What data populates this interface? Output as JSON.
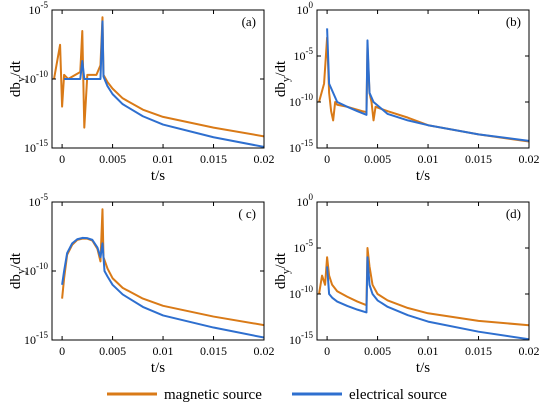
{
  "colors": {
    "magnetic": "#D97A17",
    "electrical": "#2E6FCF",
    "axis": "#000000"
  },
  "legend": {
    "magnetic_label": "magnetic source",
    "electrical_label": "electrical source"
  },
  "chart_data": [
    {
      "type": "line",
      "panel_label": "(a)",
      "xlabel": "t/s",
      "ylabel": "db_y/dt",
      "yscale": "log",
      "xlim": [
        -0.001,
        0.02
      ],
      "ylim": [
        1e-15,
        1e-05
      ],
      "xticks": [
        0,
        0.005,
        0.01,
        0.015,
        0.02
      ],
      "xtick_labels": [
        "0",
        "0.005",
        "0.01",
        "0.015",
        "0.02"
      ],
      "yticks": [
        1e-15,
        1e-10,
        1e-05
      ],
      "ytick_labels": [
        {
          "base": "10",
          "exp": "-15"
        },
        {
          "base": "10",
          "exp": "-10"
        },
        {
          "base": "10",
          "exp": "-5"
        }
      ],
      "series": [
        {
          "name": "magnetic source",
          "points": [
            [
              -0.0008,
              1e-10
            ],
            [
              -0.0002,
              3e-08
            ],
            [
              0,
              1e-12
            ],
            [
              0.0002,
              2e-10
            ],
            [
              0.0006,
              1e-10
            ],
            [
              0.0018,
              3.2e-10
            ],
            [
              0.002,
              3e-07
            ],
            [
              0.0022,
              3e-14
            ],
            [
              0.0025,
              2e-10
            ],
            [
              0.0034,
              2e-10
            ],
            [
              0.0038,
              1e-09
            ],
            [
              0.004,
              3e-06
            ],
            [
              0.0041,
              2e-10
            ],
            [
              0.0045,
              6e-11
            ],
            [
              0.005,
              2e-11
            ],
            [
              0.006,
              4e-12
            ],
            [
              0.008,
              6e-13
            ],
            [
              0.01,
              1.8e-13
            ],
            [
              0.015,
              3e-14
            ],
            [
              0.02,
              7e-15
            ]
          ]
        },
        {
          "name": "electrical source",
          "points": [
            [
              0.0002,
              1e-10
            ],
            [
              0.0018,
              1e-10
            ],
            [
              0.002,
              2e-09
            ],
            [
              0.0022,
              1e-10
            ],
            [
              0.0038,
              1e-10
            ],
            [
              0.004,
              1.5e-06
            ],
            [
              0.0041,
              1.5e-10
            ],
            [
              0.0045,
              3e-11
            ],
            [
              0.005,
              8e-12
            ],
            [
              0.006,
              1.5e-12
            ],
            [
              0.008,
              2e-13
            ],
            [
              0.01,
              5e-14
            ],
            [
              0.015,
              6e-15
            ],
            [
              0.02,
              1.2e-15
            ]
          ]
        }
      ]
    },
    {
      "type": "line",
      "panel_label": "(b)",
      "xlabel": "t/s",
      "ylabel": "db_y/dt",
      "yscale": "log",
      "xlim": [
        -0.001,
        0.02
      ],
      "ylim": [
        1e-15,
        1
      ],
      "xticks": [
        0,
        0.005,
        0.01,
        0.015,
        0.02
      ],
      "xtick_labels": [
        "0",
        "0.005",
        "0.01",
        "0.015",
        "0.02"
      ],
      "yticks": [
        1e-15,
        1e-10,
        1e-05,
        1
      ],
      "ytick_labels": [
        {
          "base": "10",
          "exp": "-15"
        },
        {
          "base": "10",
          "exp": "-10"
        },
        {
          "base": "10",
          "exp": "-5"
        },
        {
          "base": "10",
          "exp": "0"
        }
      ],
      "series": [
        {
          "name": "magnetic source",
          "points": [
            [
              -0.0008,
              1e-10
            ],
            [
              -0.0003,
              1e-08
            ],
            [
              0,
              0.001
            ],
            [
              0.0002,
              1e-09
            ],
            [
              0.0004,
              1e-11
            ],
            [
              0.0006,
              1e-12
            ],
            [
              0.0008,
              1e-10
            ],
            [
              0.001,
              5e-11
            ],
            [
              0.002,
              3e-11
            ],
            [
              0.0035,
              1e-11
            ],
            [
              0.0039,
              8e-12
            ],
            [
              0.004,
              0.0001
            ],
            [
              0.0042,
              1e-09
            ],
            [
              0.0044,
              1e-10
            ],
            [
              0.0046,
              1e-12
            ],
            [
              0.0048,
              3e-11
            ],
            [
              0.006,
              1e-11
            ],
            [
              0.008,
              2e-12
            ],
            [
              0.01,
              3e-13
            ],
            [
              0.015,
              3e-14
            ],
            [
              0.02,
              5e-15
            ]
          ]
        },
        {
          "name": "electrical source",
          "points": [
            [
              0,
              0.01
            ],
            [
              0.0002,
              1e-08
            ],
            [
              0.001,
              1e-10
            ],
            [
              0.002,
              3e-11
            ],
            [
              0.003,
              1e-11
            ],
            [
              0.0039,
              4e-12
            ],
            [
              0.004,
              0.0005
            ],
            [
              0.0042,
              1e-09
            ],
            [
              0.0046,
              1e-10
            ],
            [
              0.006,
              5e-12
            ],
            [
              0.008,
              1e-12
            ],
            [
              0.01,
              3e-13
            ],
            [
              0.015,
              3e-14
            ],
            [
              0.02,
              6e-15
            ]
          ]
        }
      ]
    },
    {
      "type": "line",
      "panel_label": "( c)",
      "xlabel": "t/s",
      "ylabel": "db_y/dt",
      "yscale": "log",
      "xlim": [
        -0.001,
        0.02
      ],
      "ylim": [
        1e-15,
        1e-05
      ],
      "xticks": [
        0,
        0.005,
        0.01,
        0.015,
        0.02
      ],
      "xtick_labels": [
        "0",
        "0.005",
        "0.01",
        "0.015",
        "0.02"
      ],
      "yticks": [
        1e-15,
        1e-10,
        1e-05
      ],
      "ytick_labels": [
        {
          "base": "10",
          "exp": "-15"
        },
        {
          "base": "10",
          "exp": "-10"
        },
        {
          "base": "10",
          "exp": "-5"
        }
      ],
      "series": [
        {
          "name": "magnetic source",
          "points": [
            [
              0,
              1e-12
            ],
            [
              0.0002,
              3e-11
            ],
            [
              0.0005,
              1.5e-09
            ],
            [
              0.001,
              8e-09
            ],
            [
              0.0015,
              1.8e-08
            ],
            [
              0.002,
              2.2e-08
            ],
            [
              0.0025,
              2.2e-08
            ],
            [
              0.003,
              1.6e-08
            ],
            [
              0.0035,
              4e-09
            ],
            [
              0.0038,
              5e-10
            ],
            [
              0.004,
              3e-06
            ],
            [
              0.0041,
              1e-09
            ],
            [
              0.0045,
              1.5e-10
            ],
            [
              0.005,
              3e-11
            ],
            [
              0.006,
              6e-12
            ],
            [
              0.008,
              1e-12
            ],
            [
              0.01,
              3e-13
            ],
            [
              0.015,
              5e-14
            ],
            [
              0.02,
              1.2e-14
            ]
          ]
        },
        {
          "name": "electrical source",
          "points": [
            [
              0,
              1e-11
            ],
            [
              0.0002,
              1e-10
            ],
            [
              0.0005,
              2e-09
            ],
            [
              0.001,
              1e-08
            ],
            [
              0.0015,
              2e-08
            ],
            [
              0.002,
              2.5e-08
            ],
            [
              0.0025,
              2.4e-08
            ],
            [
              0.003,
              1.8e-08
            ],
            [
              0.0035,
              5e-09
            ],
            [
              0.0038,
              1e-09
            ],
            [
              0.004,
              1e-08
            ],
            [
              0.0042,
              1e-10
            ],
            [
              0.0045,
              4e-11
            ],
            [
              0.005,
              1e-11
            ],
            [
              0.006,
              2e-12
            ],
            [
              0.008,
              2.5e-13
            ],
            [
              0.01,
              6e-14
            ],
            [
              0.015,
              8e-15
            ],
            [
              0.02,
              1.5e-15
            ]
          ]
        }
      ]
    },
    {
      "type": "line",
      "panel_label": "(d)",
      "xlabel": "t/s",
      "ylabel": "db_y/dt",
      "yscale": "log",
      "xlim": [
        -0.001,
        0.02
      ],
      "ylim": [
        1e-15,
        1
      ],
      "xticks": [
        0,
        0.005,
        0.01,
        0.015,
        0.02
      ],
      "xtick_labels": [
        "0",
        "0.005",
        "0.01",
        "0.015",
        "0.02"
      ],
      "yticks": [
        1e-15,
        1e-10,
        1e-05,
        1
      ],
      "ytick_labels": [
        {
          "base": "10",
          "exp": "-15"
        },
        {
          "base": "10",
          "exp": "-10"
        },
        {
          "base": "10",
          "exp": "-5"
        },
        {
          "base": "10",
          "exp": "0"
        }
      ],
      "series": [
        {
          "name": "magnetic source",
          "points": [
            [
              -0.0008,
              1e-10
            ],
            [
              -0.0005,
              1e-08
            ],
            [
              -0.0002,
              1e-09
            ],
            [
              0,
              1e-06
            ],
            [
              0.0002,
              1e-08
            ],
            [
              0.0005,
              1e-09
            ],
            [
              0.001,
              2e-10
            ],
            [
              0.002,
              5e-11
            ],
            [
              0.003,
              1.5e-11
            ],
            [
              0.0039,
              6e-12
            ],
            [
              0.004,
              1e-05
            ],
            [
              0.0042,
              1e-07
            ],
            [
              0.0045,
              1e-09
            ],
            [
              0.005,
              1e-10
            ],
            [
              0.006,
              2e-11
            ],
            [
              0.008,
              3e-12
            ],
            [
              0.01,
              8e-13
            ],
            [
              0.015,
              1.2e-13
            ],
            [
              0.02,
              4e-14
            ]
          ]
        },
        {
          "name": "electrical source",
          "points": [
            [
              0,
              1e-07
            ],
            [
              0.0002,
              1e-10
            ],
            [
              0.0005,
              4e-11
            ],
            [
              0.001,
              1.5e-11
            ],
            [
              0.002,
              5e-12
            ],
            [
              0.003,
              2e-12
            ],
            [
              0.0039,
              1e-12
            ],
            [
              0.004,
              1e-06
            ],
            [
              0.0042,
              1e-09
            ],
            [
              0.0045,
              1e-10
            ],
            [
              0.005,
              2e-11
            ],
            [
              0.006,
              4e-12
            ],
            [
              0.008,
              5e-13
            ],
            [
              0.01,
              1e-13
            ],
            [
              0.015,
              8e-15
            ],
            [
              0.02,
              1.2e-15
            ]
          ]
        }
      ]
    }
  ]
}
